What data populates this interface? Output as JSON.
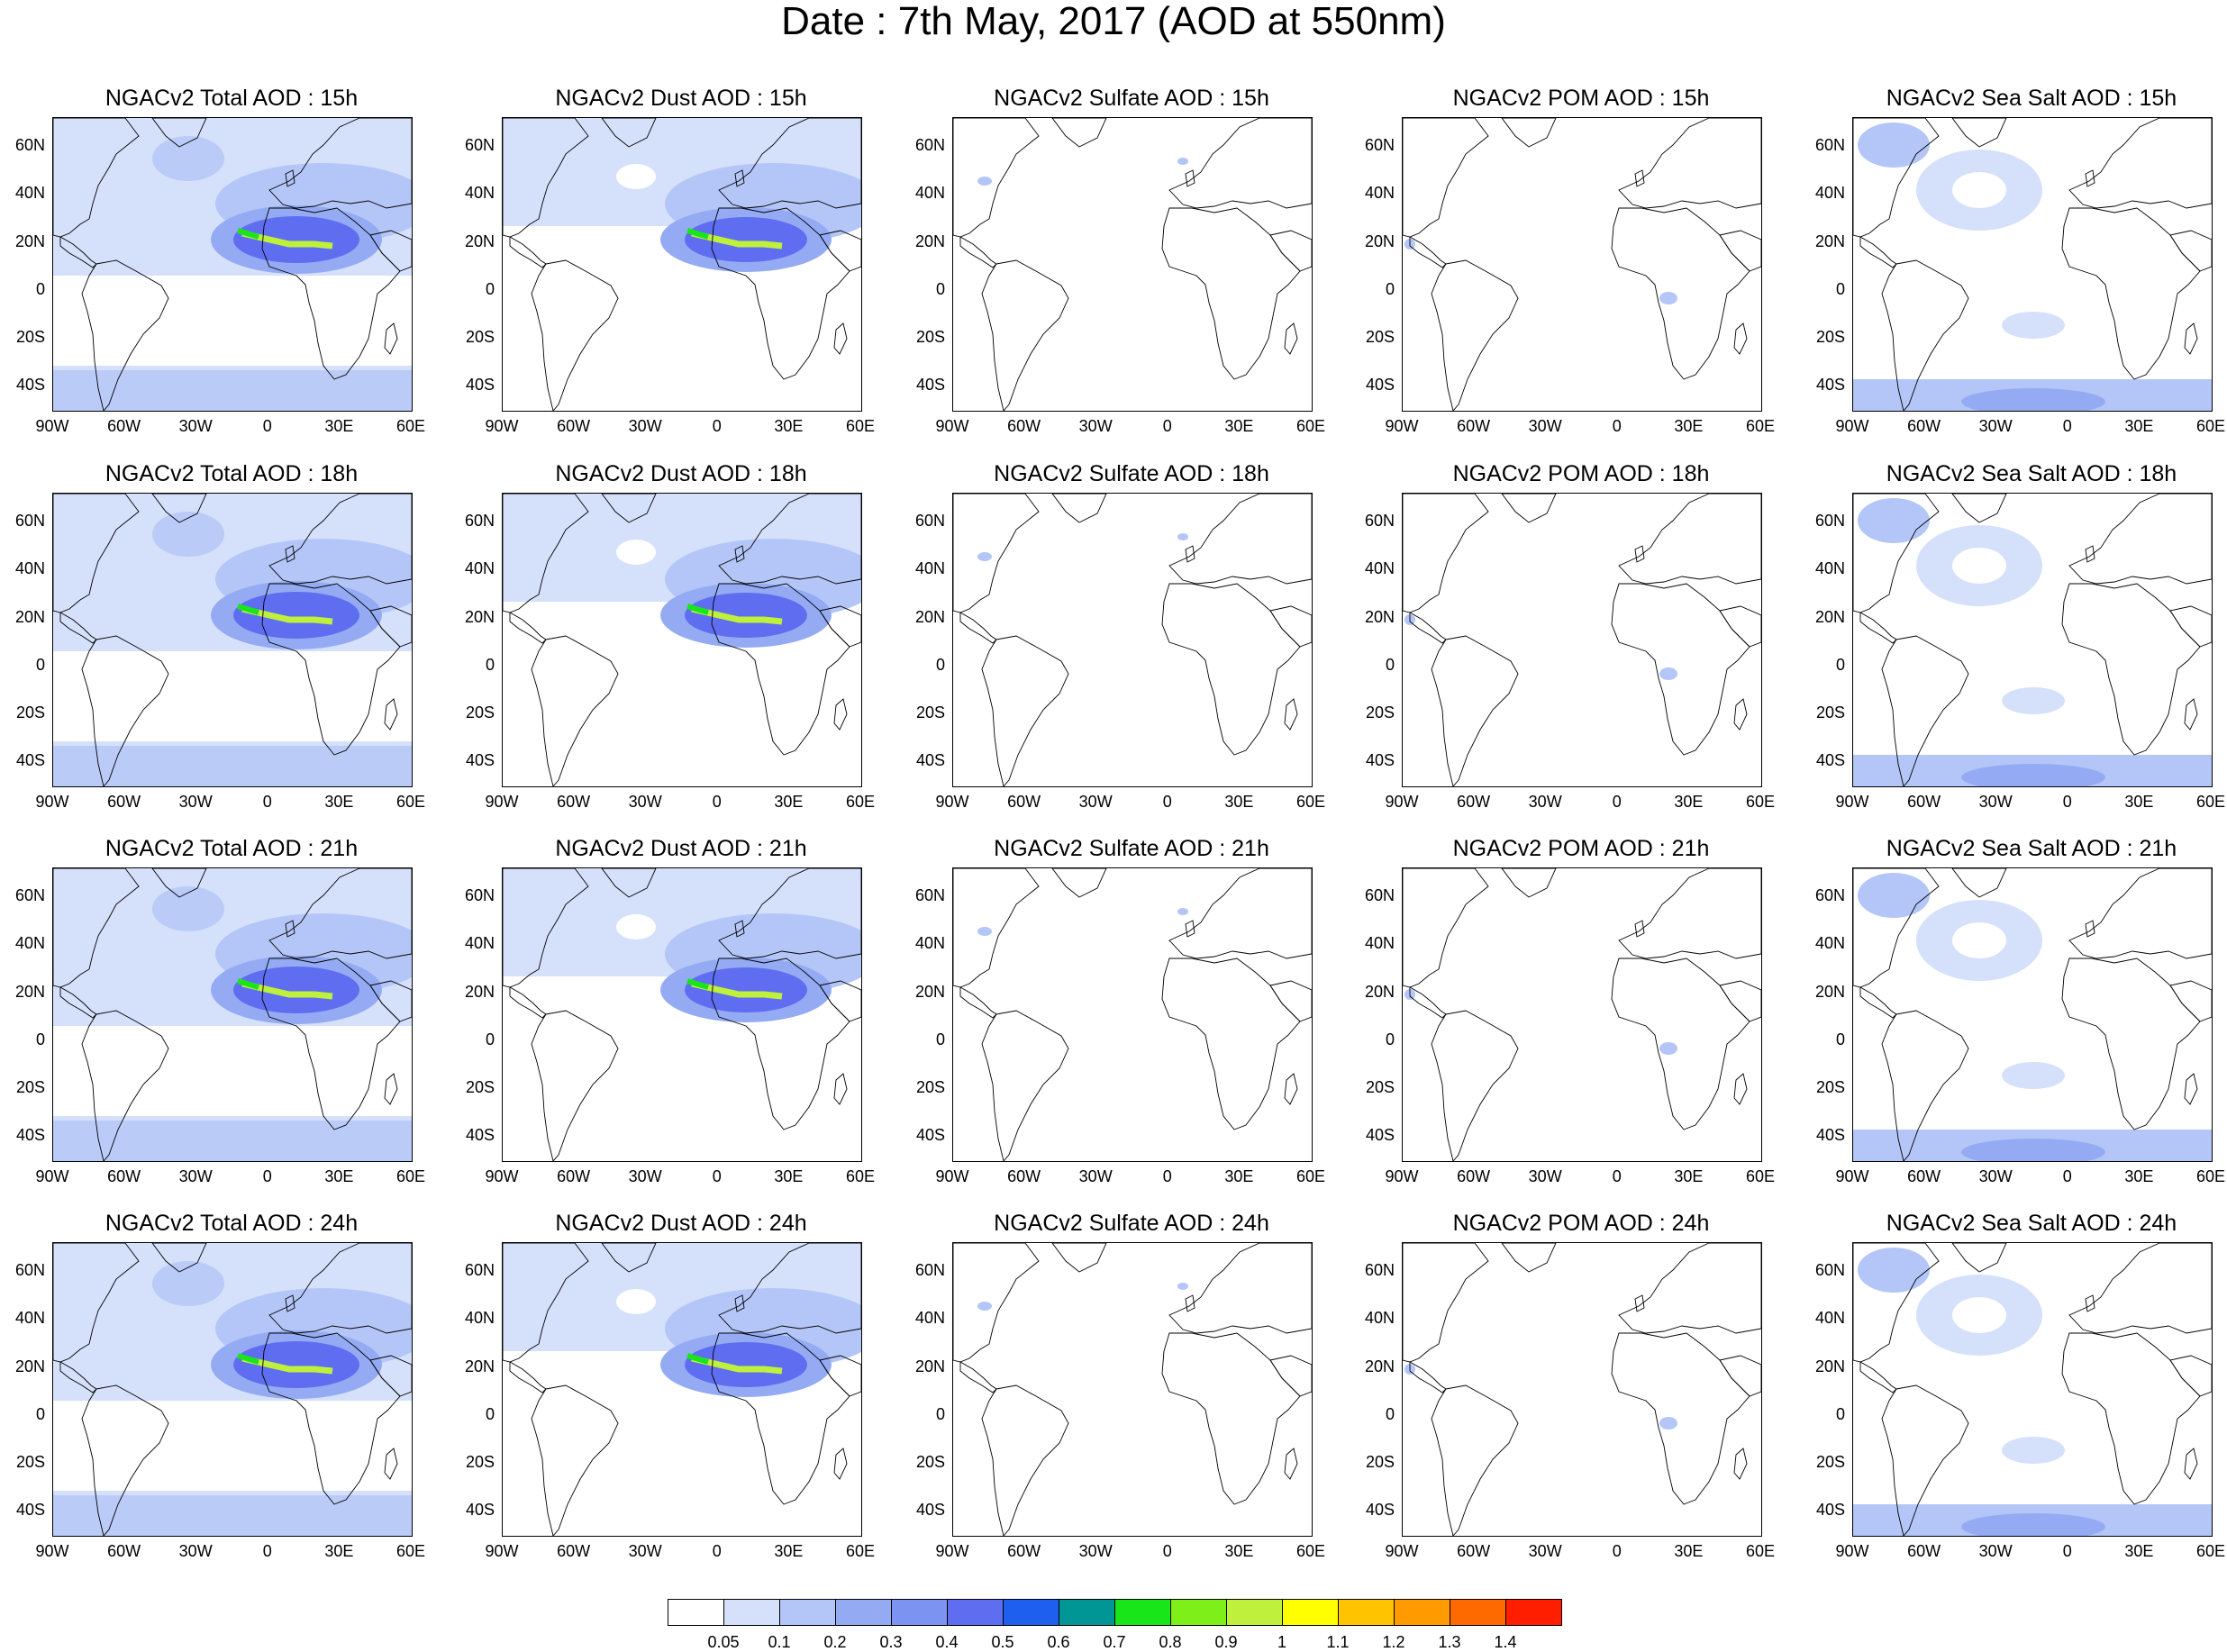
{
  "title": "Date : 7th May, 2017 (AOD at 550nm)",
  "lat_ticks": [
    "60N",
    "40N",
    "20N",
    "0",
    "20S",
    "40S"
  ],
  "lon_ticks": [
    "90W",
    "60W",
    "30W",
    "0",
    "30E",
    "60E"
  ],
  "species": [
    "total",
    "dust",
    "sulfate",
    "pom",
    "seasalt"
  ],
  "hours": [
    "15h",
    "18h",
    "21h",
    "24h"
  ],
  "panels": [
    [
      "NGACv2 Total AOD : 15h",
      "NGACv2 Dust AOD : 15h",
      "NGACv2 Sulfate AOD : 15h",
      "NGACv2 POM AOD : 15h",
      "NGACv2 Sea Salt AOD : 15h"
    ],
    [
      "NGACv2 Total AOD : 18h",
      "NGACv2 Dust AOD : 18h",
      "NGACv2 Sulfate AOD : 18h",
      "NGACv2 POM AOD : 18h",
      "NGACv2 Sea Salt AOD : 18h"
    ],
    [
      "NGACv2 Total AOD : 21h",
      "NGACv2 Dust AOD : 21h",
      "NGACv2 Sulfate AOD : 21h",
      "NGACv2 POM AOD : 21h",
      "NGACv2 Sea Salt AOD : 21h"
    ],
    [
      "NGACv2 Total AOD : 24h",
      "NGACv2 Dust AOD : 24h",
      "NGACv2 Sulfate AOD : 24h",
      "NGACv2 POM AOD : 24h",
      "NGACv2 Sea Salt  AOD : 24h"
    ]
  ],
  "colorbar": {
    "labels": [
      "0.05",
      "0.1",
      "0.2",
      "0.3",
      "0.4",
      "0.5",
      "0.6",
      "0.7",
      "0.8",
      "0.9",
      "1",
      "1.1",
      "1.2",
      "1.3",
      "1.4"
    ],
    "colors": [
      "#ffffff",
      "#d5e0fb",
      "#b4c6f7",
      "#94abf4",
      "#7d93f2",
      "#5f6ef0",
      "#1e5ff0",
      "#009696",
      "#19e619",
      "#7fef19",
      "#bff03c",
      "#ffff00",
      "#ffc300",
      "#ff9b00",
      "#ff6a00",
      "#ff1e00"
    ]
  }
}
